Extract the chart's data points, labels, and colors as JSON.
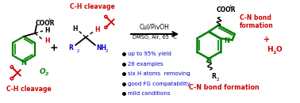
{
  "bg_color": "#ffffff",
  "green": "#008000",
  "red": "#cc0000",
  "blue": "#0000cc",
  "black": "#000000",
  "reaction_text1": "CuI/PivOH",
  "reaction_text2": "DMSO, Air, 65 °C",
  "bullet_points": [
    "up to 95% yield",
    "26 examples",
    "six H atoms  removing",
    "good FG compatability",
    "mild conditions"
  ],
  "ch_cleavage_top": "C-H cleavage",
  "ch_cleavage_bottom": "C-H cleavage",
  "cn_bond_right1": "C-N bond",
  "cn_bond_right2": "formation",
  "cn_bond_bottom": "C-N bond formation",
  "o2_label": "O",
  "o2_sub": "2",
  "h2o_label": "H",
  "h2o_sub": "2",
  "h2o_end": "O",
  "plus_h2o": "+",
  "plus_sign": "+"
}
